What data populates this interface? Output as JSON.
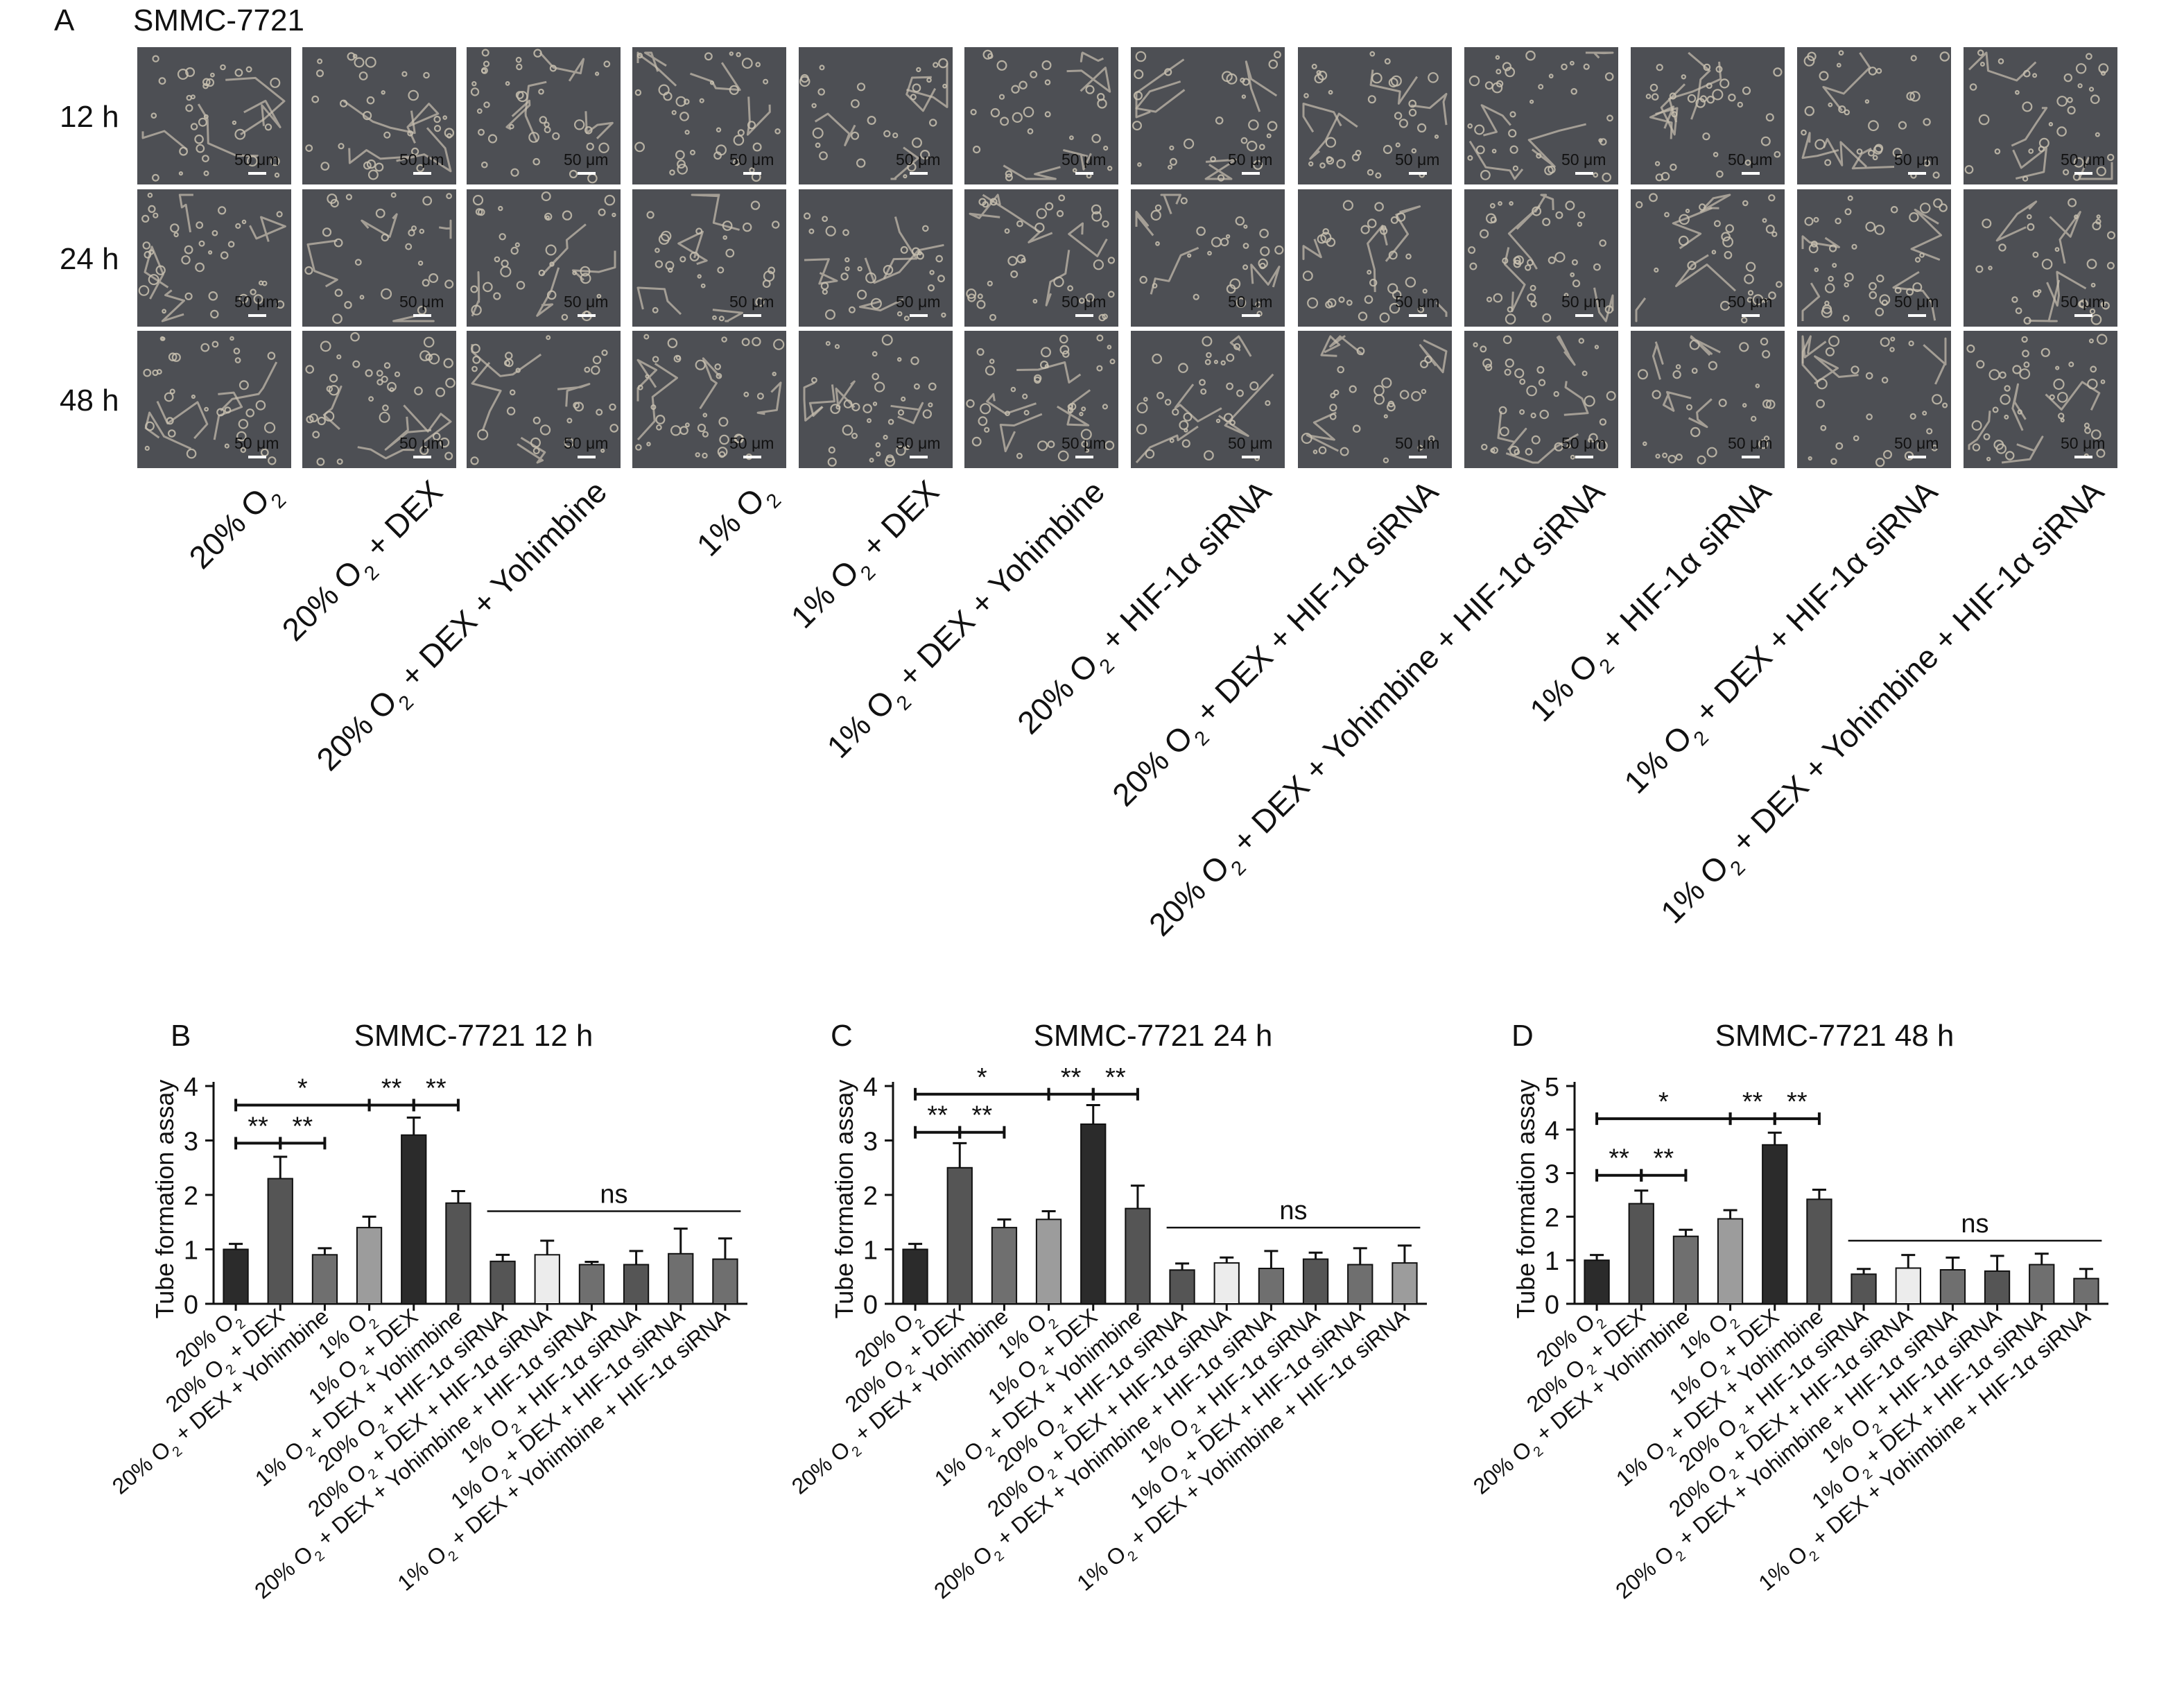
{
  "panel_a": {
    "letter": "A",
    "cell_line": "SMMC-7721",
    "time_rows": [
      "12 h",
      "24 h",
      "48 h"
    ],
    "scale_bar": "50 μm",
    "conditions": [
      {
        "text": "20% O",
        "tail": ""
      },
      {
        "text": "20% O",
        "tail": " + DEX"
      },
      {
        "text": "20% O",
        "tail": " + DEX + Yohimbine"
      },
      {
        "text": "1% O",
        "tail": ""
      },
      {
        "text": "1% O",
        "tail": " + DEX"
      },
      {
        "text": "1% O",
        "tail": " + DEX + Yohimbine"
      },
      {
        "text": "20% O",
        "tail": " + HIF-1α siRNA"
      },
      {
        "text": "20% O",
        "tail": " + DEX + HIF-1α siRNA"
      },
      {
        "text": "20% O",
        "tail": " + DEX + Yohimbine + HIF-1α siRNA"
      },
      {
        "text": "1% O",
        "tail": " + HIF-1α siRNA"
      },
      {
        "text": "1% O",
        "tail": " + DEX + HIF-1α siRNA"
      },
      {
        "text": "1% O",
        "tail": " + DEX + Yohimbine + HIF-1α siRNA"
      }
    ],
    "subscript": "2"
  },
  "colors": {
    "micrograph_bg": "#4d4f54",
    "cell": "#c9c1b0",
    "bar_black": "#2b2b2b",
    "bar_dark": "#555555",
    "bar_mid": "#6f6f6f",
    "bar_light": "#9c9c9c",
    "bar_white": "#ececec"
  },
  "chart_data": [
    {
      "letter": "B",
      "type": "bar",
      "title": "SMMC-7721 12 h",
      "ylabel": "Tube formation assay",
      "ylim": [
        0,
        4
      ],
      "yticks": [
        0,
        1,
        2,
        3,
        4
      ],
      "categories": [
        "20% O2",
        "20% O2 + DEX",
        "20% O2 + DEX + Yohimbine",
        "1% O2",
        "1% O2 + DEX",
        "1% O2 + DEX + Yohimbine",
        "20% O2 + HIF-1α siRNA",
        "20% O2 + DEX + HIF-1α siRNA",
        "20% O2 + DEX + Yohimbine + HIF-1α siRNA",
        "1% O2 + HIF-1α siRNA",
        "1% O2 + DEX + HIF-1α siRNA",
        "1% O2 + DEX + Yohimbine + HIF-1α siRNA"
      ],
      "values": [
        1.0,
        2.3,
        0.9,
        1.4,
        3.1,
        1.85,
        0.78,
        0.9,
        0.72,
        0.72,
        0.92,
        0.82
      ],
      "errors": [
        0.1,
        0.4,
        0.12,
        0.2,
        0.32,
        0.22,
        0.12,
        0.26,
        0.05,
        0.25,
        0.46,
        0.38
      ],
      "fills": [
        "black",
        "dark",
        "mid",
        "light",
        "black",
        "dark",
        "dark",
        "white",
        "mid",
        "dark",
        "mid",
        "mid"
      ],
      "significance": [
        {
          "from": 0,
          "to": 1,
          "y": 2.95,
          "label": "**"
        },
        {
          "from": 1,
          "to": 2,
          "y": 2.95,
          "label": "**"
        },
        {
          "from": 0,
          "to": 3,
          "y": 3.65,
          "label": "*"
        },
        {
          "from": 3,
          "to": 4,
          "y": 3.65,
          "label": "**"
        },
        {
          "from": 4,
          "to": 5,
          "y": 3.65,
          "label": "**"
        },
        {
          "from": 6,
          "to": 11,
          "y": 1.7,
          "label": "ns",
          "plain": true
        }
      ]
    },
    {
      "letter": "C",
      "type": "bar",
      "title": "SMMC-7721 24 h",
      "ylabel": "Tube formation assay",
      "ylim": [
        0,
        4
      ],
      "yticks": [
        0,
        1,
        2,
        3,
        4
      ],
      "categories": [
        "20% O2",
        "20% O2 + DEX",
        "20% O2 + DEX + Yohimbine",
        "1% O2",
        "1% O2 + DEX",
        "1% O2 + DEX + Yohimbine",
        "20% O2 + HIF-1α siRNA",
        "20% O2 + DEX + HIF-1α siRNA",
        "20% O2 + DEX + Yohimbine + HIF-1α siRNA",
        "1% O2 + HIF-1α siRNA",
        "1% O2 + DEX + HIF-1α siRNA",
        "1% O2 + DEX + Yohimbine + HIF-1α siRNA"
      ],
      "values": [
        1.0,
        2.5,
        1.4,
        1.55,
        3.3,
        1.75,
        0.62,
        0.75,
        0.65,
        0.82,
        0.72,
        0.75
      ],
      "errors": [
        0.1,
        0.45,
        0.15,
        0.15,
        0.35,
        0.42,
        0.12,
        0.1,
        0.32,
        0.12,
        0.3,
        0.32
      ],
      "fills": [
        "black",
        "dark",
        "mid",
        "light",
        "black",
        "dark",
        "dark",
        "white",
        "mid",
        "dark",
        "mid",
        "light"
      ],
      "significance": [
        {
          "from": 0,
          "to": 1,
          "y": 3.15,
          "label": "**"
        },
        {
          "from": 1,
          "to": 2,
          "y": 3.15,
          "label": "**"
        },
        {
          "from": 0,
          "to": 3,
          "y": 3.85,
          "label": "*"
        },
        {
          "from": 3,
          "to": 4,
          "y": 3.85,
          "label": "**"
        },
        {
          "from": 4,
          "to": 5,
          "y": 3.85,
          "label": "**"
        },
        {
          "from": 6,
          "to": 11,
          "y": 1.4,
          "label": "ns",
          "plain": true
        }
      ]
    },
    {
      "letter": "D",
      "type": "bar",
      "title": "SMMC-7721 48 h",
      "ylabel": "Tube formation assay",
      "ylim": [
        0,
        5
      ],
      "yticks": [
        0,
        1,
        2,
        3,
        4,
        5
      ],
      "categories": [
        "20% O2",
        "20% O2 + DEX",
        "20% O2 + DEX + Yohimbine",
        "1% O2",
        "1% O2 + DEX",
        "1% O2 + DEX + Yohimbine",
        "20% O2 + HIF-1α siRNA",
        "20% O2 + DEX + HIF-1α siRNA",
        "20% O2 + DEX + Yohimbine + HIF-1α siRNA",
        "1% O2 + HIF-1α siRNA",
        "1% O2 + DEX + HIF-1α siRNA",
        "1% O2 + DEX + Yohimbine + HIF-1α siRNA"
      ],
      "values": [
        1.0,
        2.3,
        1.55,
        1.95,
        3.65,
        2.4,
        0.68,
        0.82,
        0.78,
        0.75,
        0.9,
        0.58
      ],
      "errors": [
        0.12,
        0.3,
        0.15,
        0.2,
        0.28,
        0.22,
        0.12,
        0.3,
        0.28,
        0.35,
        0.25,
        0.22
      ],
      "fills": [
        "black",
        "dark",
        "mid",
        "light",
        "black",
        "dark",
        "dark",
        "white",
        "mid",
        "dark",
        "mid",
        "mid"
      ],
      "significance": [
        {
          "from": 0,
          "to": 1,
          "y": 2.95,
          "label": "**"
        },
        {
          "from": 1,
          "to": 2,
          "y": 2.95,
          "label": "**"
        },
        {
          "from": 0,
          "to": 3,
          "y": 4.25,
          "label": "*"
        },
        {
          "from": 3,
          "to": 4,
          "y": 4.25,
          "label": "**"
        },
        {
          "from": 4,
          "to": 5,
          "y": 4.25,
          "label": "**"
        },
        {
          "from": 6,
          "to": 11,
          "y": 1.45,
          "label": "ns",
          "plain": true
        }
      ]
    }
  ]
}
